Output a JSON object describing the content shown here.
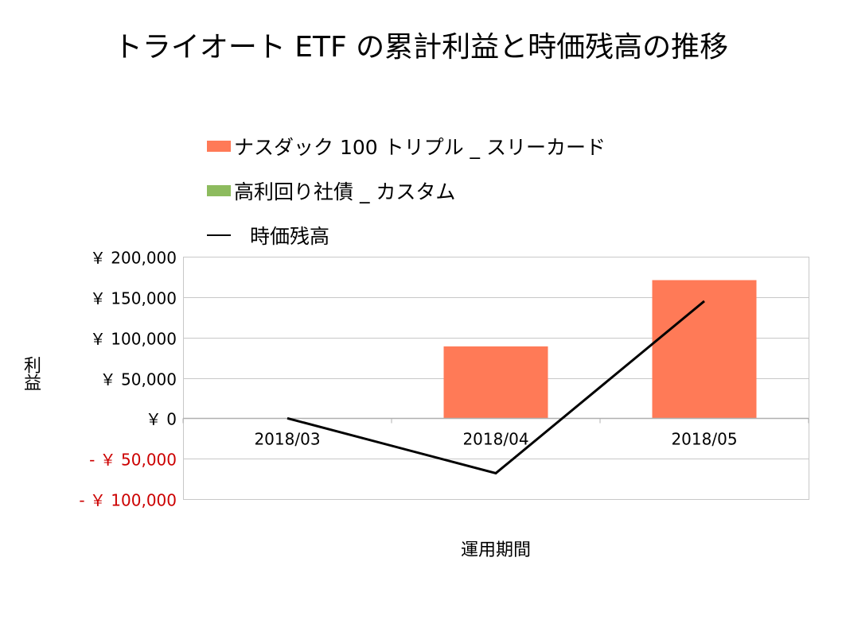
{
  "chart_data": {
    "type": "bar",
    "title": "トライオート ETF の累計利益と時価残高の推移",
    "xlabel": "運用期間",
    "ylabel": "利益",
    "categories": [
      "2018/03",
      "2018/04",
      "2018/05"
    ],
    "ylim": [
      -100000,
      200000
    ],
    "yticks": [
      200000,
      150000,
      100000,
      50000,
      0,
      -50000,
      -100000
    ],
    "ytick_labels": [
      "￥ 200,000",
      "￥ 150,000",
      "￥ 100,000",
      "￥ 50,000",
      "￥ 0",
      "- ￥ 50,000",
      "- ￥ 100,000"
    ],
    "grid": true,
    "legend_position": "top",
    "series": [
      {
        "name": "ナスダック 100 トリプル _ スリーカード",
        "kind": "bar",
        "color": "#FF7A57",
        "values": [
          0,
          89000,
          171000
        ]
      },
      {
        "name": "高利回り社債 _ カスタム",
        "kind": "bar",
        "color": "#8DBB5E",
        "values": [
          0,
          0,
          0
        ]
      },
      {
        "name": "時価残高",
        "kind": "line",
        "color": "#000000",
        "values": [
          0,
          -68000,
          145000
        ]
      }
    ],
    "negative_label_color": "#CC0000"
  }
}
